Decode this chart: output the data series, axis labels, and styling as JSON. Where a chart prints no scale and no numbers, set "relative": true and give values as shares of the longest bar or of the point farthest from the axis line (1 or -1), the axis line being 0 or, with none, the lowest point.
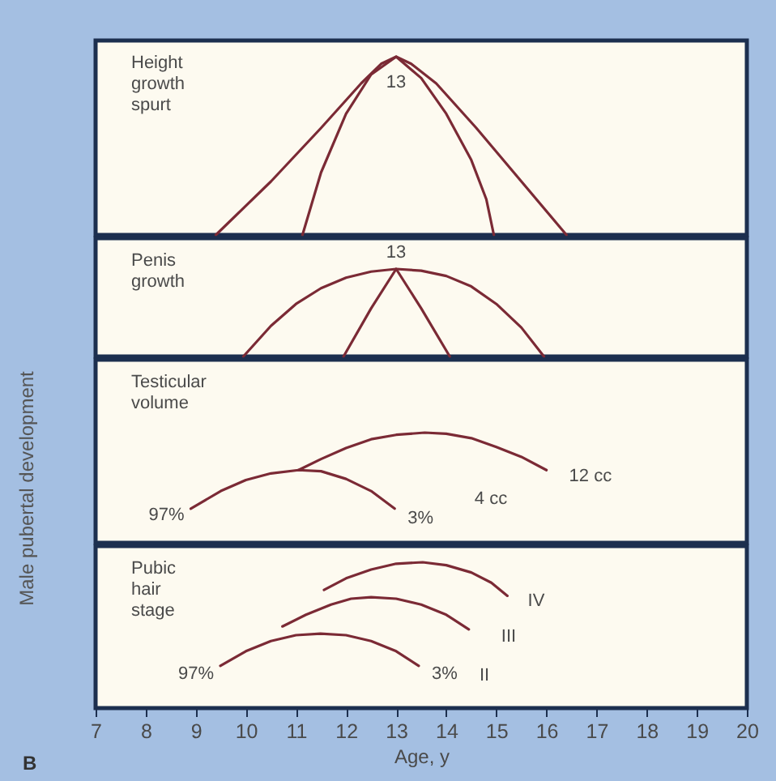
{
  "chart_data": [
    {
      "type": "line",
      "title": "Height\ngrowth\nspurt",
      "relative": true,
      "xlim": [
        7,
        20
      ],
      "tick_labels": false,
      "series": [
        {
          "color": "#7b2a35",
          "x": [
            9.4,
            10.5,
            11.5,
            12.3,
            12.7,
            13,
            13.3,
            13.8,
            14.6,
            15.5,
            16.4
          ],
          "values": [
            0,
            0.3,
            0.6,
            0.85,
            0.96,
            1,
            0.96,
            0.85,
            0.6,
            0.3,
            0
          ]
        },
        {
          "color": "#7b2a35",
          "x": [
            11.13,
            11.5,
            12,
            12.5,
            13,
            13.5,
            14,
            14.5,
            14.8,
            14.95
          ],
          "values": [
            0,
            0.35,
            0.68,
            0.9,
            1,
            0.88,
            0.68,
            0.42,
            0.2,
            0
          ]
        }
      ],
      "annotations": [
        {
          "text": "13",
          "x": 13,
          "y": 1
        }
      ]
    },
    {
      "type": "line",
      "title": "Penis\ngrowth",
      "relative": true,
      "xlim": [
        7,
        20
      ],
      "tick_labels": false,
      "series": [
        {
          "color": "#7b2a35",
          "x": [
            9.95,
            10.5,
            11,
            11.5,
            12,
            12.5,
            13,
            13.5,
            14,
            14.5,
            15,
            15.5,
            15.95
          ],
          "values": [
            0,
            0.35,
            0.6,
            0.78,
            0.9,
            0.97,
            1,
            0.98,
            0.92,
            0.8,
            0.6,
            0.33,
            0
          ]
        },
        {
          "color": "#7b2a35",
          "x": [
            11.95,
            12.5,
            13,
            13.5,
            14.07
          ],
          "values": [
            0,
            0.55,
            1,
            0.55,
            0
          ]
        }
      ],
      "annotations": [
        {
          "text": "13",
          "x": 13,
          "y": 1
        }
      ]
    },
    {
      "type": "line",
      "title": "Testicular\nvolume",
      "ylabel": "Male pubertal development",
      "relative": true,
      "xlim": [
        7,
        20
      ],
      "tick_labels": false,
      "series": [
        {
          "color": "#7b2a35",
          "x": [
            8.9,
            9.5,
            10,
            10.5,
            11.05,
            11.5,
            12,
            12.5,
            12.97
          ],
          "values": [
            0.31,
            0.47,
            0.57,
            0.63,
            0.66,
            0.65,
            0.58,
            0.47,
            0.31
          ]
        },
        {
          "color": "#7b2a35",
          "x": [
            11.05,
            11.5,
            12,
            12.5,
            13,
            13.57,
            14,
            14.5,
            15,
            15.5,
            16
          ],
          "values": [
            0.66,
            0.76,
            0.86,
            0.94,
            0.98,
            1,
            0.99,
            0.95,
            0.87,
            0.78,
            0.66
          ]
        }
      ],
      "annotations": [
        {
          "text": "97%",
          "x": 8.9,
          "y": 0.31
        },
        {
          "text": "3%",
          "x": 12.97,
          "y": 0.31
        },
        "4 cc",
        {
          "text": "12 cc",
          "x": 16,
          "y": 0.66
        }
      ]
    },
    {
      "type": "line",
      "title": "Pubic\nhair\nstage",
      "xlabel": "Age, y",
      "relative": true,
      "xlim": [
        7,
        20
      ],
      "xticks": [
        7,
        8,
        9,
        10,
        11,
        12,
        13,
        14,
        15,
        16,
        17,
        18,
        19,
        20
      ],
      "tick_labels": "x",
      "series": [
        {
          "color": "#7b2a35",
          "x": [
            9.49,
            10,
            10.5,
            11,
            11.49,
            12,
            12.5,
            13,
            13.45
          ],
          "values": [
            0.29,
            0.39,
            0.46,
            0.5,
            0.51,
            0.5,
            0.46,
            0.39,
            0.29
          ]
        },
        {
          "color": "#7b2a35",
          "x": [
            10.73,
            11.2,
            11.7,
            12.1,
            12.5,
            13,
            13.5,
            14,
            14.45
          ],
          "values": [
            0.56,
            0.64,
            0.71,
            0.75,
            0.76,
            0.75,
            0.71,
            0.64,
            0.54
          ]
        },
        {
          "color": "#7b2a35",
          "x": [
            11.56,
            12,
            12.5,
            13,
            13.53,
            14,
            14.5,
            14.9,
            15.22
          ],
          "values": [
            0.81,
            0.89,
            0.95,
            0.99,
            1,
            0.98,
            0.93,
            0.86,
            0.77
          ]
        }
      ],
      "annotations": [
        {
          "text": "97%",
          "x": 9.49,
          "y": 0.29
        },
        {
          "text": "3%",
          "x": 13.45,
          "y": 0.29
        },
        "II",
        "III",
        "IV",
        "B"
      ]
    }
  ]
}
